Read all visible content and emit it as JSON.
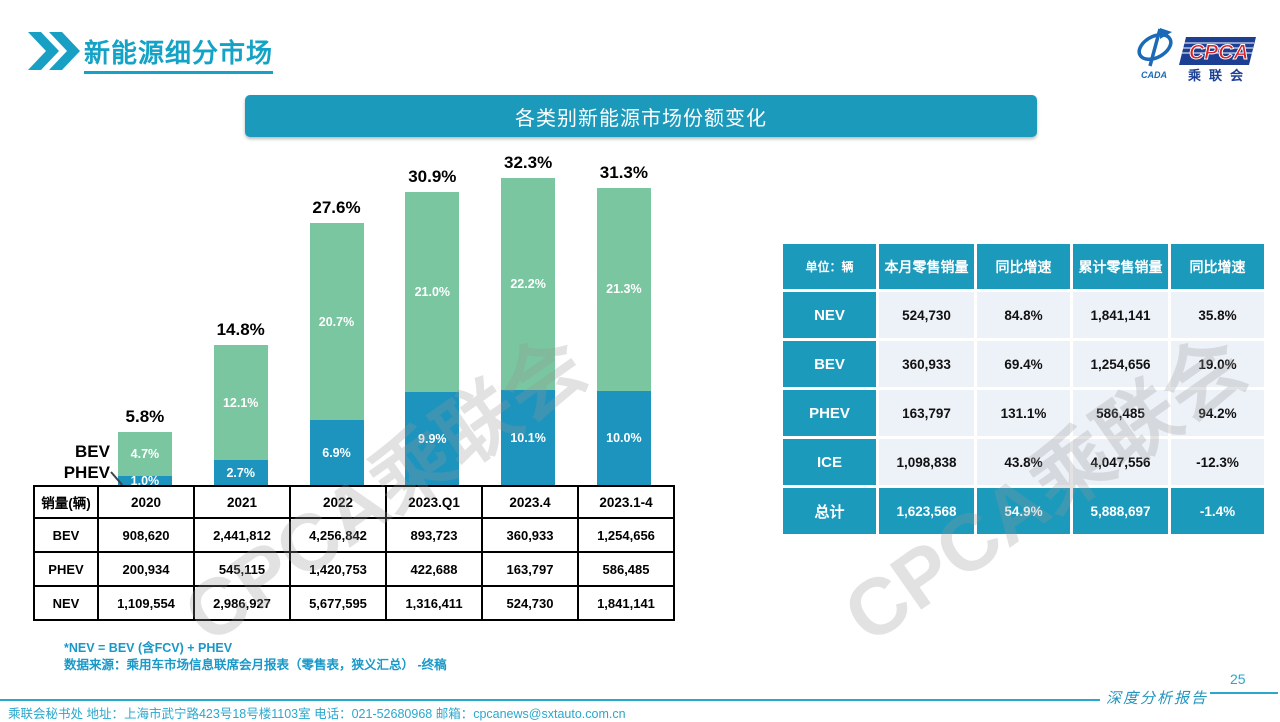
{
  "page": {
    "title": "新能源细分市场",
    "page_number": "25",
    "report_label": "深度分析报告",
    "footer": "乘联会秘书处   地址：上海市武宁路423号18号楼1103室 电话：021-52680968   邮箱：cpcanews@sxtauto.com.cn",
    "watermark": "CPCA乘联会"
  },
  "logo": {
    "cpca": "CPCA",
    "cada": "CADA",
    "name_cn": "乘联会"
  },
  "banner": {
    "title": "各类别新能源市场份额变化"
  },
  "colors": {
    "accent_teal": "#1b9abc",
    "title_text": "#14a3c6",
    "bar_phev_blue": "#1c94be",
    "bar_bev_green": "#79c6a0",
    "table_row_bg": "#edf1f8",
    "footer_text": "#2aa7cc",
    "logo_blue": "#1c3f94",
    "logo_red": "#d8232a"
  },
  "chart_data": {
    "type": "bar",
    "stacked": true,
    "title": "各类别新能源市场份额变化",
    "categories": [
      "2020",
      "2021",
      "2022",
      "2023.Q1",
      "2023.4",
      "2023.1-4"
    ],
    "series": [
      {
        "name": "PHEV",
        "color": "#1c94be",
        "values": [
          1.0,
          2.7,
          6.9,
          9.9,
          10.1,
          10.0
        ]
      },
      {
        "name": "BEV",
        "color": "#79c6a0",
        "values": [
          4.7,
          12.1,
          20.7,
          21.0,
          22.2,
          21.3
        ]
      }
    ],
    "totals": [
      5.8,
      14.8,
      27.6,
      30.9,
      32.3,
      31.3
    ],
    "value_suffix": "%",
    "ylim": [
      0,
      35
    ],
    "grid": false,
    "legend_position": "left-of-first-bar"
  },
  "sales_table": {
    "header": [
      "销量(辆)",
      "2020",
      "2021",
      "2022",
      "2023.Q1",
      "2023.4",
      "2023.1-4"
    ],
    "rows": [
      [
        "BEV",
        "908,620",
        "2,441,812",
        "4,256,842",
        "893,723",
        "360,933",
        "1,254,656"
      ],
      [
        "PHEV",
        "200,934",
        "545,115",
        "1,420,753",
        "422,688",
        "163,797",
        "586,485"
      ],
      [
        "NEV",
        "1,109,554",
        "2,986,927",
        "5,677,595",
        "1,316,411",
        "524,730",
        "1,841,141"
      ]
    ]
  },
  "summary_table": {
    "header": [
      "单位：辆",
      "本月零售销量",
      "同比增速",
      "累计零售销量",
      "同比增速"
    ],
    "rows": [
      [
        "NEV",
        "524,730",
        "84.8%",
        "1,841,141",
        "35.8%"
      ],
      [
        "BEV",
        "360,933",
        "69.4%",
        "1,254,656",
        "19.0%"
      ],
      [
        "PHEV",
        "163,797",
        "131.1%",
        "586,485",
        "94.2%"
      ],
      [
        "ICE",
        "1,098,838",
        "43.8%",
        "4,047,556",
        "-12.3%"
      ]
    ],
    "total_row": [
      "总计",
      "1,623,568",
      "54.9%",
      "5,888,697",
      "-1.4%"
    ]
  },
  "notes": [
    "*NEV = BEV (含FCV) + PHEV",
    "数据来源：乘用车市场信息联席会月报表（零售表，狭义汇总） -终稿"
  ]
}
